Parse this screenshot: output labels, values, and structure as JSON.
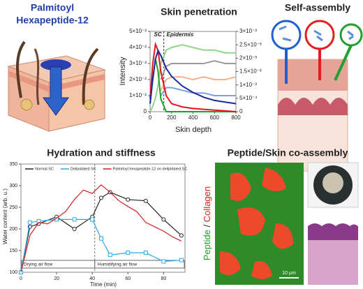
{
  "labels": {
    "compound_line1": "Palmitoyl",
    "compound_line2": "Hexapeptide-12",
    "self_assembly": "Self-assembly",
    "coassembly_title": "Peptide/Skin co-assembly",
    "peptide": "Peptide",
    "slash": " / ",
    "collagen": "Collagen",
    "scale_bar": "10 µm"
  },
  "chart_data": [
    {
      "type": "line",
      "title": "Skin penetration",
      "xlabel": "Skin depth",
      "ylabel": "Intensity",
      "annotations": [
        "SC",
        "Epidermis"
      ],
      "x": [
        0,
        25,
        50,
        75,
        100,
        150,
        200,
        300,
        400,
        500,
        600,
        700,
        800
      ],
      "xlim": [
        0,
        800
      ],
      "xticks": [
        0,
        200,
        400,
        600,
        800
      ],
      "ylim": [
        0,
        0.05
      ],
      "yticks": [
        0,
        {
          "value": 0.01,
          "label": "1×10⁻²"
        },
        {
          "value": 0.02,
          "label": "2×10⁻²"
        },
        {
          "value": 0.03,
          "label": "3×10⁻²"
        },
        {
          "value": 0.04,
          "label": "4×10⁻²"
        },
        {
          "value": 0.05,
          "label": "5×10⁻²"
        }
      ],
      "y2lim": [
        0,
        0.003
      ],
      "y2ticks": [
        0,
        {
          "value": 0.0005,
          "label": "5×10⁻⁴"
        },
        {
          "value": 0.001,
          "label": "1×10⁻³"
        },
        {
          "value": 0.0015,
          "label": "1.5×10⁻³"
        },
        {
          "value": 0.002,
          "label": "2×10⁻³"
        },
        {
          "value": 0.0025,
          "label": "2.5×10⁻³"
        },
        {
          "value": 0.003,
          "label": "3×10⁻³"
        }
      ],
      "series": [
        {
          "color": "#8fd68a",
          "axis": "y2",
          "values": [
            0,
            0.0002,
            0.0005,
            0.001,
            0.0018,
            0.0023,
            0.0024,
            0.0025,
            0.0024,
            0.0023,
            0.0023,
            0.0022,
            0.0022
          ]
        },
        {
          "color": "#9a9a9a",
          "axis": "y2",
          "values": [
            null,
            null,
            null,
            null,
            0.0012,
            0.0017,
            0.0018,
            0.0018,
            0.0018,
            0.0018,
            0.0019,
            0.0018,
            0.0018
          ]
        },
        {
          "color": "#f4b08c",
          "axis": "y2",
          "values": [
            null,
            null,
            null,
            null,
            0.0008,
            0.0012,
            0.0013,
            0.0013,
            0.0012,
            0.0013,
            0.0012,
            0.0012,
            0.0013
          ]
        },
        {
          "color": "#7aa0e6",
          "axis": "y2",
          "values": [
            null,
            null,
            null,
            null,
            0.0006,
            0.0009,
            0.0009,
            0.0008,
            0.0007,
            0.0007,
            0.0006,
            0.0006,
            0.0006
          ]
        },
        {
          "color": "#1fa02a",
          "values": [
            0.005,
            0.02,
            0.033,
            0.025,
            0.008,
            0,
            0,
            0,
            0,
            0,
            0,
            0,
            0
          ]
        },
        {
          "color": "#e8141c",
          "values": [
            0.008,
            0.03,
            0.042,
            0.038,
            0.025,
            0.01,
            0.005,
            0.003,
            0.002,
            0.0015,
            0.001,
            0.0005,
            0
          ]
        },
        {
          "color": "#1a2a9c",
          "values": [
            0.005,
            0.02,
            0.033,
            0.038,
            0.035,
            0.027,
            0.022,
            0.016,
            0.012,
            0.009,
            0.007,
            0.006,
            0.005
          ]
        }
      ]
    },
    {
      "type": "line",
      "title": "Hydration and stiffness",
      "xlabel": "Time (min)",
      "ylabel": "Water content (arb. u.)",
      "annotations": [
        "Drying air flow",
        "Humidifying air flow"
      ],
      "legend": "top",
      "xlim": [
        0,
        92
      ],
      "xticks": [
        0,
        20,
        40,
        60,
        80
      ],
      "ylim": [
        100,
        350
      ],
      "yticks": [
        100,
        150,
        200,
        250,
        300,
        350
      ],
      "series": [
        {
          "name": "Normal SC",
          "color": "#222222",
          "marker": "circle",
          "x": [
            0,
            5,
            10,
            20,
            30,
            40,
            45,
            50,
            60,
            70,
            80,
            90
          ],
          "values": [
            100,
            205,
            212,
            228,
            200,
            228,
            272,
            285,
            268,
            265,
            222,
            185
          ]
        },
        {
          "name": "Delipidated SC",
          "color": "#2aa8e8",
          "marker": "square",
          "x": [
            0,
            5,
            10,
            20,
            30,
            40,
            45,
            50,
            60,
            70,
            80,
            90
          ],
          "values": [
            100,
            215,
            218,
            222,
            222,
            222,
            178,
            140,
            145,
            145,
            125,
            128
          ]
        },
        {
          "name": "Palmitoyl hexapeptide-12 on delipidated SC",
          "color": "#d02020",
          "x": [
            0,
            5,
            10,
            15,
            20,
            25,
            30,
            35,
            40,
            45,
            50,
            55,
            60,
            65,
            70,
            75,
            80,
            85,
            90
          ],
          "values": [
            100,
            185,
            215,
            212,
            225,
            240,
            268,
            290,
            282,
            302,
            285,
            265,
            252,
            240,
            215,
            205,
            195,
            182,
            172
          ]
        }
      ]
    }
  ]
}
